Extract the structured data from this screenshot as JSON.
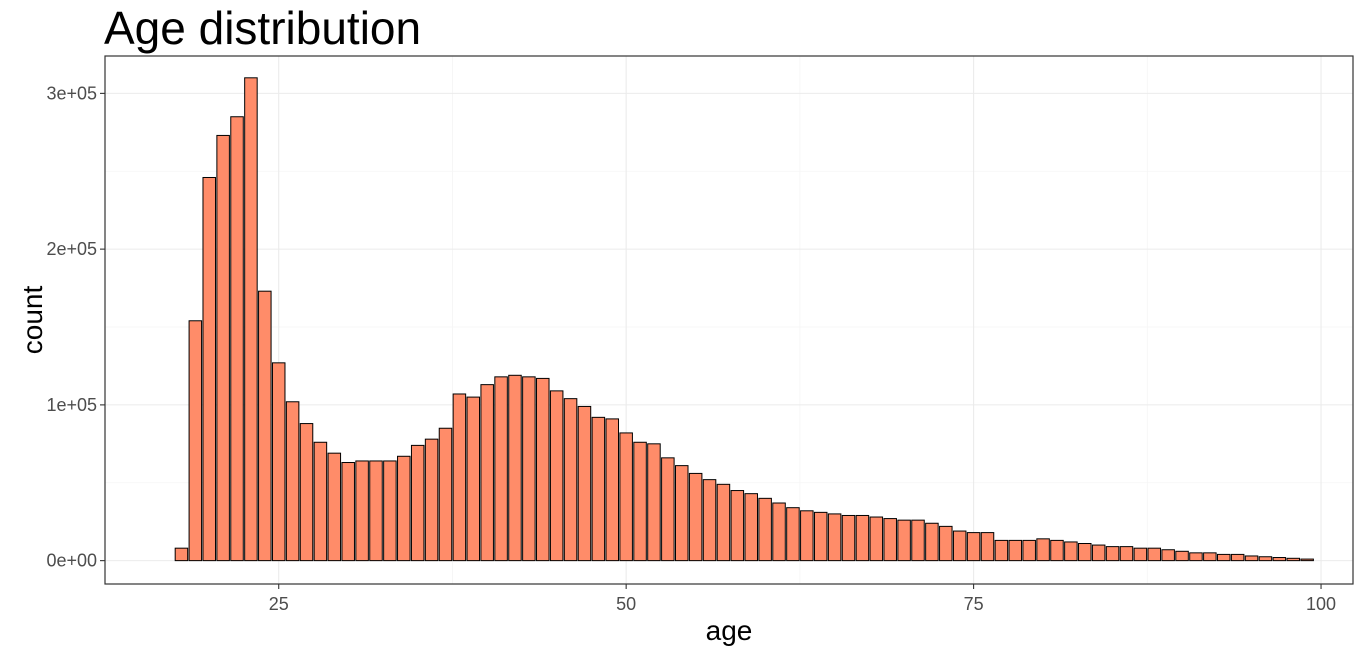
{
  "chart_data": {
    "type": "bar",
    "title": "Age distribution",
    "xlabel": "age",
    "ylabel": "count",
    "xlim": [
      12.5,
      102.3
    ],
    "ylim": [
      -15000,
      324000
    ],
    "x_ticks": [
      25,
      50,
      75,
      100
    ],
    "x_tick_labels": [
      "25",
      "50",
      "75",
      "100"
    ],
    "y_ticks": [
      0,
      100000,
      200000,
      300000
    ],
    "y_tick_labels": [
      "0e+00",
      "1e+05",
      "2e+05",
      "3e+05"
    ],
    "grid": true,
    "legend": "none",
    "bar_color": "#ff8c69",
    "bar_edge_color": "#000000",
    "x": [
      18,
      19,
      20,
      21,
      22,
      23,
      24,
      25,
      26,
      27,
      28,
      29,
      30,
      31,
      32,
      33,
      34,
      35,
      36,
      37,
      38,
      39,
      40,
      41,
      42,
      43,
      44,
      45,
      46,
      47,
      48,
      49,
      50,
      51,
      52,
      53,
      54,
      55,
      56,
      57,
      58,
      59,
      60,
      61,
      62,
      63,
      64,
      65,
      66,
      67,
      68,
      69,
      70,
      71,
      72,
      73,
      74,
      75,
      76,
      77,
      78,
      79,
      80,
      81,
      82,
      83,
      84,
      85,
      86,
      87,
      88,
      89,
      90,
      91,
      92,
      93,
      94,
      95,
      96,
      97,
      98,
      99
    ],
    "values": [
      8000,
      154000,
      246000,
      273000,
      285000,
      310000,
      173000,
      127000,
      102000,
      88000,
      76000,
      69000,
      63000,
      64000,
      64000,
      64000,
      67000,
      74000,
      78000,
      85000,
      107000,
      105000,
      113000,
      118000,
      119000,
      118000,
      117000,
      109000,
      104000,
      99000,
      92000,
      91000,
      82000,
      76000,
      75000,
      66000,
      61000,
      56000,
      52000,
      49000,
      45000,
      43000,
      40000,
      37000,
      34000,
      32000,
      31000,
      30000,
      29000,
      29000,
      28000,
      27000,
      26000,
      26000,
      24000,
      22000,
      19000,
      18000,
      18000,
      13000,
      13000,
      13000,
      14000,
      13000,
      12000,
      11000,
      10000,
      9000,
      9000,
      8000,
      8000,
      7000,
      6000,
      5000,
      5000,
      4000,
      4000,
      3000,
      2500,
      2000,
      1500,
      1000
    ]
  },
  "colors": {
    "panel_border": "#333333",
    "grid_major": "#ebebeb",
    "grid_minor": "#f5f5f5",
    "tick_text": "#4d4d4d"
  }
}
